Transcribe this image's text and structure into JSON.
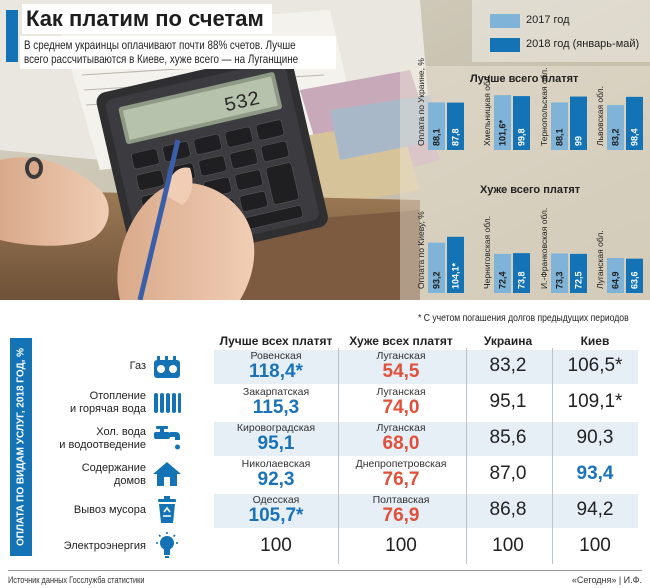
{
  "title": "Как платим по счетам",
  "subtitle_lines": [
    "В среднем украинцы оплачивают почти 88% счетов. Лучше",
    "всего рассчитываются в Киеве, хуже всего — на Луганщине"
  ],
  "colors": {
    "light": "#7fb3d8",
    "dark": "#1473b4",
    "red": "#e0503a",
    "blue": "#1a73b8"
  },
  "legend": {
    "s2017": "2017 год",
    "s2018": "2018 год (январь-май)"
  },
  "chart_data": [
    {
      "type": "bar",
      "title": "Лучше всего платят",
      "categories": [
        "Оплата по Украине, %",
        "Хмельницкая обл.",
        "Тернопольская обл.",
        "Львовская обл."
      ],
      "series": [
        {
          "name": "2017 год",
          "values": [
            88.1,
            101.6,
            88.1,
            83.2
          ],
          "labels": [
            "88,1",
            "101,6*",
            "88,1",
            "83,2"
          ]
        },
        {
          "name": "2018 год (январь-май)",
          "values": [
            87.8,
            99.8,
            99,
            98.4
          ],
          "labels": [
            "87,8",
            "99,8",
            "99",
            "98,4"
          ]
        }
      ]
    },
    {
      "type": "bar",
      "title": "Хуже всего платят",
      "categories": [
        "Оплата по Киеву, %",
        "Черниговская обл.",
        "И.-Франковская обл.",
        "Луганская обл."
      ],
      "series": [
        {
          "name": "2017 год",
          "values": [
            93.2,
            72.4,
            73.3,
            64.9
          ],
          "labels": [
            "93,2",
            "72,4",
            "73,3",
            "64,9"
          ]
        },
        {
          "name": "2018 год (январь-май)",
          "values": [
            104.1,
            73.8,
            72.5,
            63.6
          ],
          "labels": [
            "104,1*",
            "73,8",
            "72,5",
            "63,6"
          ]
        }
      ]
    },
    {
      "type": "table",
      "side_label": "ОПЛАТА ПО ВИДАМ УСЛУГ, 2018 ГОД, %",
      "footnote": "* С учетом погашения долгов предыдущих периодов",
      "headers": [
        "Лучше всех платят",
        "Хуже всех платят",
        "Украина",
        "Киев"
      ],
      "rows": [
        {
          "service": "Газ",
          "icon": "gas-stove-icon",
          "best_region": "Ровенская",
          "best": "118,4*",
          "worst_region": "Луганская",
          "worst": "54,5",
          "ukraine": "83,2",
          "kyiv": "106,5*",
          "kyiv_hl": false
        },
        {
          "service": "Отопление\nи горячая вода",
          "icon": "radiator-icon",
          "best_region": "Закарпатская",
          "best": "115,3",
          "worst_region": "Луганская",
          "worst": "74,0",
          "ukraine": "95,1",
          "kyiv": "109,1*",
          "kyiv_hl": false
        },
        {
          "service": "Хол. вода\nи водоотведение",
          "icon": "water-tap-icon",
          "best_region": "Кировоградская",
          "best": "95,1",
          "worst_region": "Луганская",
          "worst": "68,0",
          "ukraine": "85,6",
          "kyiv": "90,3",
          "kyiv_hl": false
        },
        {
          "service": "Содержание\nдомов",
          "icon": "house-icon",
          "best_region": "Николаевская",
          "best": "92,3",
          "worst_region": "Днепропетровская",
          "worst": "76,7",
          "ukraine": "87,0",
          "kyiv": "93,4",
          "kyiv_hl": true
        },
        {
          "service": "Вывоз мусора",
          "icon": "trash-bin-icon",
          "best_region": "Одесская",
          "best": "105,7*",
          "worst_region": "Полтавская",
          "worst": "76,9",
          "ukraine": "86,8",
          "kyiv": "94,2",
          "kyiv_hl": false
        },
        {
          "service": "Электроэнергия",
          "icon": "light-bulb-icon",
          "best_region": "",
          "best": "100",
          "worst_region": "",
          "worst": "100",
          "ukraine": "100",
          "kyiv": "100",
          "kyiv_hl": false
        }
      ]
    }
  ],
  "source": "Источник данных Госслужба статистики",
  "credit": "«Сегодня» | И.Ф."
}
